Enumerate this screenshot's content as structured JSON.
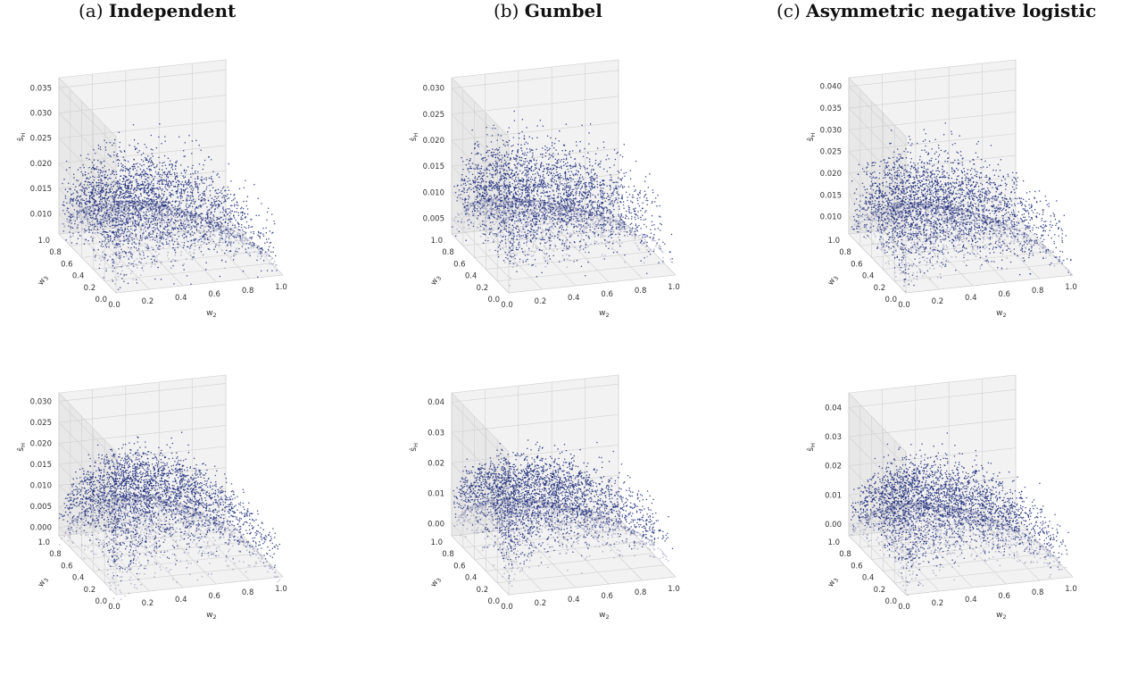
{
  "headings": [
    {
      "tag": "(a)",
      "name": "Independent"
    },
    {
      "tag": "(b)",
      "name": "Gumbel"
    },
    {
      "tag": "(c)",
      "name": "Asymmetric negative logistic"
    }
  ],
  "axis_text": {
    "xlabel": "w",
    "xlabel_sub": "2",
    "ylabel": "w",
    "ylabel_sub": "3",
    "zlabel": "ŝ",
    "zlabel_sub": "H"
  },
  "colors": {
    "points": "#1f2d7a",
    "surface": "#8c90b4",
    "pane_back": "#f2f2f2",
    "pane_side": "#e8e8e8",
    "grid": "#d0d0d0"
  },
  "chart_data": [
    {
      "type": "scatter",
      "model": "independent",
      "row": 1,
      "xlabel": "w2",
      "ylabel": "w3",
      "zlabel": "s_H",
      "xticks": [
        "0.0",
        "0.2",
        "0.4",
        "0.6",
        "0.8",
        "1.0"
      ],
      "yticks": [
        "0.0",
        "0.2",
        "0.4",
        "0.6",
        "0.8",
        "1.0"
      ],
      "zticks": [
        "0.010",
        "0.015",
        "0.020",
        "0.025",
        "0.030",
        "0.035"
      ],
      "zlim": [
        0.006,
        0.037
      ],
      "peak": 0.02,
      "corner": 0.01,
      "spread": 0.0035,
      "sharp": 1.0
    },
    {
      "type": "scatter",
      "model": "gumbel",
      "row": 1,
      "xlabel": "w2",
      "ylabel": "w3",
      "zlabel": "s_H",
      "xticks": [
        "0.0",
        "0.2",
        "0.4",
        "0.6",
        "0.8",
        "1.0"
      ],
      "yticks": [
        "0.0",
        "0.2",
        "0.4",
        "0.6",
        "0.8",
        "1.0"
      ],
      "zticks": [
        "0.005",
        "0.010",
        "0.015",
        "0.020",
        "0.025",
        "0.030"
      ],
      "zlim": [
        0.002,
        0.032
      ],
      "peak": 0.016,
      "corner": 0.004,
      "spread": 0.0035,
      "sharp": 2.2
    },
    {
      "type": "scatter",
      "model": "asymmetric-negative-logistic",
      "row": 1,
      "xlabel": "w2",
      "ylabel": "w3",
      "zlabel": "s_H",
      "xticks": [
        "0.0",
        "0.2",
        "0.4",
        "0.6",
        "0.8",
        "1.0"
      ],
      "yticks": [
        "0.0",
        "0.2",
        "0.4",
        "0.6",
        "0.8",
        "1.0"
      ],
      "zticks": [
        "0.010",
        "0.015",
        "0.020",
        "0.025",
        "0.030",
        "0.035",
        "0.040"
      ],
      "zlim": [
        0.006,
        0.042
      ],
      "peak": 0.022,
      "corner": 0.009,
      "spread": 0.004,
      "sharp": 1.2
    },
    {
      "type": "scatter",
      "model": "independent",
      "row": 2,
      "xlabel": "w2",
      "ylabel": "w3",
      "zlabel": "s_H",
      "xticks": [
        "0.0",
        "0.2",
        "0.4",
        "0.6",
        "0.8",
        "1.0"
      ],
      "yticks": [
        "0.0",
        "0.2",
        "0.4",
        "0.6",
        "0.8",
        "1.0"
      ],
      "zticks": [
        "0.000",
        "0.005",
        "0.010",
        "0.015",
        "0.020",
        "0.025",
        "0.030"
      ],
      "zlim": [
        -0.002,
        0.032
      ],
      "peak": 0.018,
      "corner": 0.001,
      "spread": 0.003,
      "sharp": 1.0
    },
    {
      "type": "scatter",
      "model": "gumbel",
      "row": 2,
      "xlabel": "w2",
      "ylabel": "w3",
      "zlabel": "s_H",
      "xticks": [
        "0.0",
        "0.2",
        "0.4",
        "0.6",
        "0.8",
        "1.0"
      ],
      "yticks": [
        "0.0",
        "0.2",
        "0.4",
        "0.6",
        "0.8",
        "1.0"
      ],
      "zticks": [
        "0.00",
        "0.01",
        "0.02",
        "0.03",
        "0.04"
      ],
      "zlim": [
        -0.004,
        0.043
      ],
      "peak": 0.021,
      "corner": 0.0,
      "spread": 0.004,
      "sharp": 1.8
    },
    {
      "type": "scatter",
      "model": "asymmetric-negative-logistic",
      "row": 2,
      "xlabel": "w2",
      "ylabel": "w3",
      "zlabel": "s_H",
      "xticks": [
        "0.0",
        "0.2",
        "0.4",
        "0.6",
        "0.8",
        "1.0"
      ],
      "yticks": [
        "0.0",
        "0.2",
        "0.4",
        "0.6",
        "0.8",
        "1.0"
      ],
      "zticks": [
        "0.00",
        "0.01",
        "0.02",
        "0.03",
        "0.04"
      ],
      "zlim": [
        -0.004,
        0.045
      ],
      "peak": 0.021,
      "corner": 0.001,
      "spread": 0.0045,
      "sharp": 1.1
    }
  ]
}
